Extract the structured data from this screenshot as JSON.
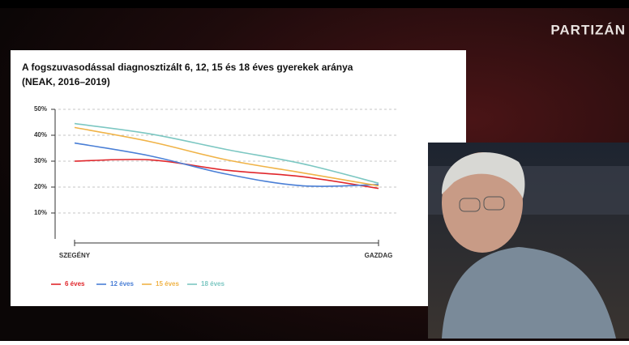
{
  "brand": "PARTIZÁN",
  "chart_data": {
    "type": "line",
    "title": "A fogszuvasodással diagnosztizált 6, 12, 15 és 18 éves gyerekek aránya",
    "subtitle": "(NEAK, 2016–2019)",
    "categories": [
      "SZEGÉNY",
      null,
      null,
      null,
      "GAZDAG"
    ],
    "series": [
      {
        "name": "6 éves",
        "color": "#e0262b",
        "values": [
          30,
          30.5,
          26.5,
          24,
          19.5
        ]
      },
      {
        "name": "12 éves",
        "color": "#4a7fd6",
        "values": [
          37,
          32,
          25,
          20.5,
          21
        ]
      },
      {
        "name": "15 éves",
        "color": "#f0b347",
        "values": [
          43,
          37.5,
          30.5,
          25.5,
          20.5
        ]
      },
      {
        "name": "18 éves",
        "color": "#7cc7c2",
        "values": [
          44.5,
          40.5,
          34.5,
          29,
          21.5
        ]
      }
    ],
    "ylim": [
      0,
      50
    ],
    "yticks": [
      {
        "value": 10,
        "label": "10%"
      },
      {
        "value": 20,
        "label": "20%"
      },
      {
        "value": 30,
        "label": "30%"
      },
      {
        "value": 40,
        "label": "40%"
      },
      {
        "value": 50,
        "label": "50%"
      }
    ],
    "grid": true
  }
}
